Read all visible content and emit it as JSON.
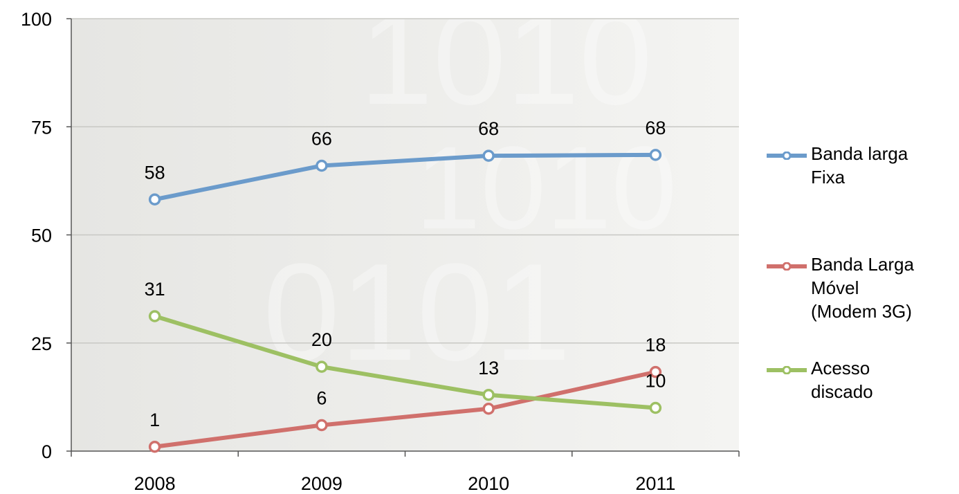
{
  "chart_data": {
    "type": "line",
    "categories": [
      "2008",
      "2009",
      "2010",
      "2011"
    ],
    "ylim": [
      0,
      100
    ],
    "yticks": [
      0,
      25,
      50,
      75,
      100
    ],
    "grid": true,
    "legend_position": "right",
    "series": [
      {
        "name": " Banda larga\nFixa",
        "color": "#6B9BCB",
        "values": [
          58.2,
          66.0,
          68.3,
          68.5
        ],
        "labels": [
          "58",
          "66",
          "68",
          "68"
        ]
      },
      {
        "name": "Banda Larga\nMóvel\n(Modem 3G)",
        "color": "#D0706C",
        "values": [
          1.0,
          6.0,
          9.8,
          18.3
        ],
        "labels": [
          "1",
          "6",
          "",
          "18"
        ]
      },
      {
        "name": "Acesso\ndiscado",
        "color": "#9DC063",
        "values": [
          31.2,
          19.5,
          13.0,
          10.0
        ],
        "labels": [
          "31",
          "20",
          "13",
          "10"
        ]
      }
    ]
  }
}
